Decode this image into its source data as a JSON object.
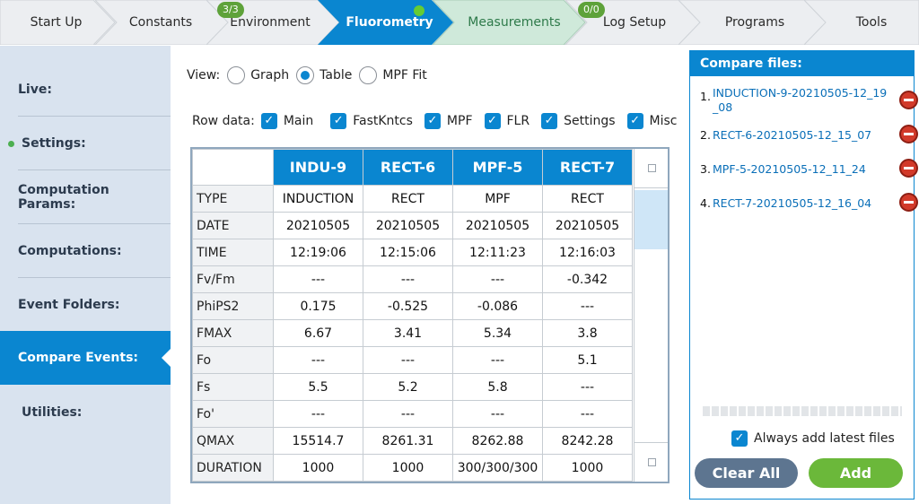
{
  "topnav": {
    "tabs": [
      {
        "label": "Start Up"
      },
      {
        "label": "Constants"
      },
      {
        "label": "Environment",
        "badge": "3/3"
      },
      {
        "label": "Fluorometry"
      },
      {
        "label": "Measurements",
        "badge": "0/0"
      },
      {
        "label": "Log Setup"
      },
      {
        "label": "Programs"
      },
      {
        "label": "Tools"
      }
    ],
    "colors": {
      "active": "#0a86d0",
      "visited": "#cfe9da",
      "default": "#eceef1",
      "badge": "#5ea23a"
    }
  },
  "sidebar": {
    "items": [
      {
        "label": "Live:"
      },
      {
        "label": "Settings:"
      },
      {
        "label": "Computation Params:"
      },
      {
        "label": "Computations:"
      },
      {
        "label": "Event Folders:"
      },
      {
        "label": "Compare Events:"
      },
      {
        "label": "Utilities:"
      }
    ]
  },
  "view": {
    "label": "View:",
    "options": [
      "Graph",
      "Table",
      "MPF Fit"
    ],
    "selected": "Table"
  },
  "row_data": {
    "label": "Row data:",
    "options": [
      {
        "label": "Main",
        "checked": true
      },
      {
        "label": "FastKntcs",
        "checked": true
      },
      {
        "label": "MPF",
        "checked": true
      },
      {
        "label": "FLR",
        "checked": true
      },
      {
        "label": "Settings",
        "checked": true
      },
      {
        "label": "Misc",
        "checked": true
      }
    ]
  },
  "table": {
    "columns": [
      "INDU-9",
      "RECT-6",
      "MPF-5",
      "RECT-7"
    ],
    "rows": [
      {
        "label": "TYPE",
        "values": [
          "INDUCTION",
          "RECT",
          "MPF",
          "RECT"
        ]
      },
      {
        "label": "DATE",
        "values": [
          "20210505",
          "20210505",
          "20210505",
          "20210505"
        ]
      },
      {
        "label": "TIME",
        "values": [
          "12:19:06",
          "12:15:06",
          "12:11:23",
          "12:16:03"
        ]
      },
      {
        "label": "Fv/Fm",
        "values": [
          "---",
          "---",
          "---",
          "-0.342"
        ]
      },
      {
        "label": "PhiPS2",
        "values": [
          "0.175",
          "-0.525",
          "-0.086",
          "---"
        ]
      },
      {
        "label": "FMAX",
        "values": [
          "6.67",
          "3.41",
          "5.34",
          "3.8"
        ]
      },
      {
        "label": "Fo",
        "values": [
          "---",
          "---",
          "---",
          "5.1"
        ]
      },
      {
        "label": "Fs",
        "values": [
          "5.5",
          "5.2",
          "5.8",
          "---"
        ]
      },
      {
        "label": "Fo'",
        "values": [
          "---",
          "---",
          "---",
          "---"
        ]
      },
      {
        "label": "QMAX",
        "values": [
          "15514.7",
          "8261.31",
          "8262.88",
          "8242.28"
        ]
      },
      {
        "label": "DURATION",
        "values": [
          "1000",
          "1000",
          "300/300/300",
          "1000"
        ]
      }
    ]
  },
  "compare_files": {
    "title": "Compare files:",
    "files": [
      {
        "num": "1.",
        "name": "INDUCTION-9-20210505-12_19_08"
      },
      {
        "num": "2.",
        "name": "RECT-6-20210505-12_15_07"
      },
      {
        "num": "3.",
        "name": "MPF-5-20210505-12_11_24"
      },
      {
        "num": "4.",
        "name": "RECT-7-20210505-12_16_04"
      }
    ],
    "always_add": {
      "label": "Always add latest files",
      "checked": true
    },
    "clear_label": "Clear All",
    "add_label": "Add"
  }
}
